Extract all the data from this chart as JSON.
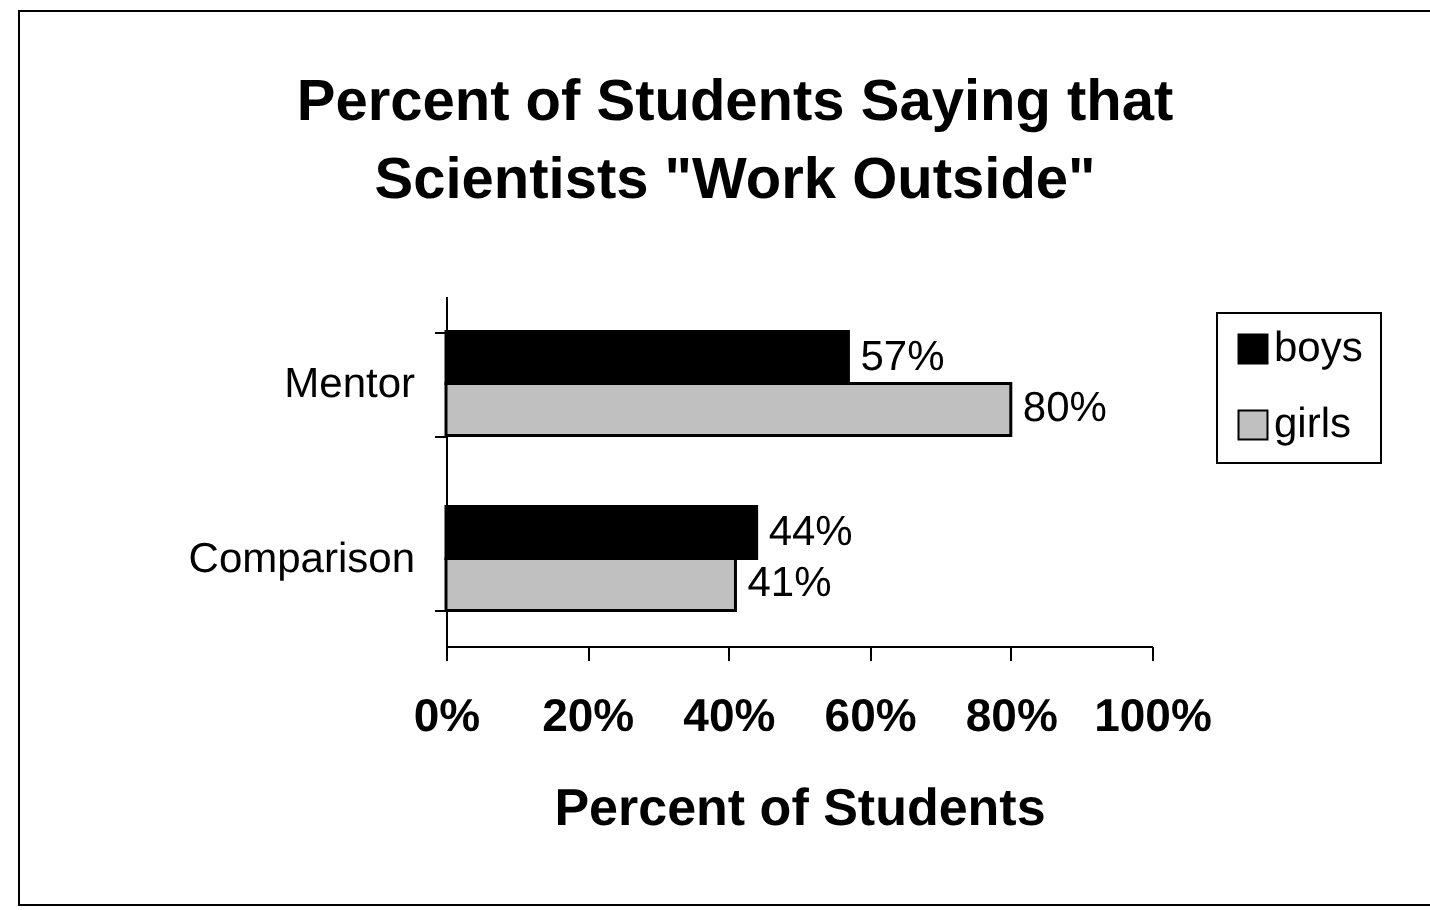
{
  "chart_data": {
    "type": "bar",
    "orientation": "horizontal",
    "title": "Percent of Students Saying that Scientists \"Work Outside\"",
    "xlabel": "Percent of Students",
    "categories": [
      "Mentor",
      "Comparison"
    ],
    "series": [
      {
        "name": "boys",
        "color": "#000000",
        "values": [
          57,
          44
        ],
        "value_labels": [
          "57%",
          "44%"
        ]
      },
      {
        "name": "girls",
        "color": "#c0c0c0",
        "values": [
          80,
          41
        ],
        "value_labels": [
          "80%",
          "41%"
        ]
      }
    ],
    "xlim": [
      0,
      100
    ],
    "xticks": [
      {
        "value": 0,
        "label": "0%"
      },
      {
        "value": 20,
        "label": "20%"
      },
      {
        "value": 40,
        "label": "40%"
      },
      {
        "value": 60,
        "label": "60%"
      },
      {
        "value": 80,
        "label": "80%"
      },
      {
        "value": 100,
        "label": "100%"
      }
    ],
    "legend": "right"
  }
}
